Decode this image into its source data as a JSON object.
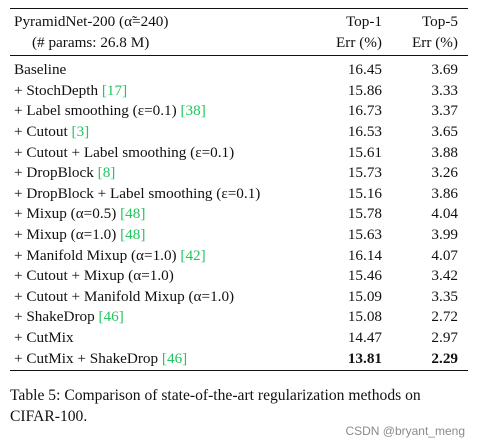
{
  "table": {
    "header": {
      "method_line1": "PyramidNet-200 (α̃=240)",
      "method_line2": "(# params: 26.8 M)",
      "top1_line1": "Top-1",
      "top1_line2": "Err (%)",
      "top5_line1": "Top-5",
      "top5_line2": "Err (%)"
    },
    "rows": [
      {
        "method": "Baseline",
        "cite": "",
        "top1": "16.45",
        "top5": "3.69",
        "bold": false
      },
      {
        "method": "+ StochDepth ",
        "cite": "[17]",
        "top1": "15.86",
        "top5": "3.33",
        "bold": false
      },
      {
        "method": "+ Label smoothing (ε=0.1) ",
        "cite": "[38]",
        "top1": "16.73",
        "top5": "3.37",
        "bold": false
      },
      {
        "method": "+ Cutout ",
        "cite": "[3]",
        "top1": "16.53",
        "top5": "3.65",
        "bold": false
      },
      {
        "method": "+ Cutout + Label smoothing (ε=0.1)",
        "cite": "",
        "top1": "15.61",
        "top5": "3.88",
        "bold": false
      },
      {
        "method": "+ DropBlock ",
        "cite": "[8]",
        "top1": "15.73",
        "top5": "3.26",
        "bold": false
      },
      {
        "method": "+ DropBlock + Label smoothing (ε=0.1)",
        "cite": "",
        "top1": "15.16",
        "top5": "3.86",
        "bold": false
      },
      {
        "method": "+ Mixup (α=0.5) ",
        "cite": "[48]",
        "top1": "15.78",
        "top5": "4.04",
        "bold": false
      },
      {
        "method": "+ Mixup (α=1.0) ",
        "cite": "[48]",
        "top1": "15.63",
        "top5": "3.99",
        "bold": false
      },
      {
        "method": "+ Manifold Mixup (α=1.0) ",
        "cite": "[42]",
        "top1": "16.14",
        "top5": "4.07",
        "bold": false
      },
      {
        "method": "+ Cutout + Mixup (α=1.0)",
        "cite": "",
        "top1": "15.46",
        "top5": "3.42",
        "bold": false
      },
      {
        "method": "+ Cutout + Manifold Mixup (α=1.0)",
        "cite": "",
        "top1": "15.09",
        "top5": "3.35",
        "bold": false
      },
      {
        "method": "+ ShakeDrop ",
        "cite": "[46]",
        "top1": "15.08",
        "top5": "2.72",
        "bold": false
      },
      {
        "method": "+ CutMix",
        "cite": "",
        "top1": "14.47",
        "top5": "2.97",
        "bold": false
      },
      {
        "method": "+ CutMix + ShakeDrop ",
        "cite": "[46]",
        "top1": "13.81",
        "top5": "2.29",
        "bold": true
      }
    ]
  },
  "caption": "Table 5: Comparison of state-of-the-art regularization methods on CIFAR-100.",
  "watermark": "CSDN @bryant_meng",
  "colors": {
    "citation": "#22c55e",
    "text": "#111111",
    "watermark": "#8a8a8a"
  }
}
